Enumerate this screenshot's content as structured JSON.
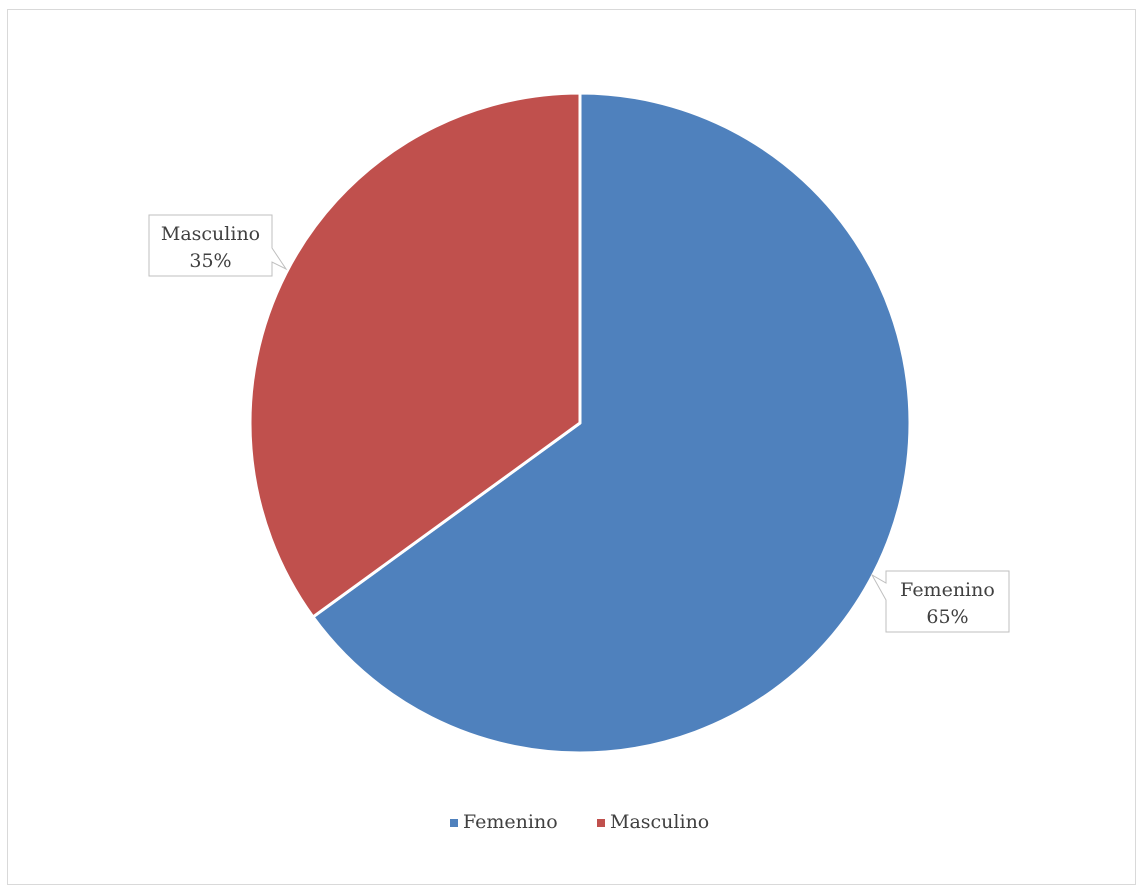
{
  "chart_data": {
    "type": "pie",
    "categories": [
      "Femenino",
      "Masculino"
    ],
    "values": [
      65,
      35
    ],
    "data_labels": [
      "65%",
      "35%"
    ],
    "colors": [
      "#4f81bd",
      "#c0504d"
    ],
    "legend": {
      "placement": "bottom",
      "entries": [
        "Femenino",
        "Masculino"
      ]
    }
  }
}
